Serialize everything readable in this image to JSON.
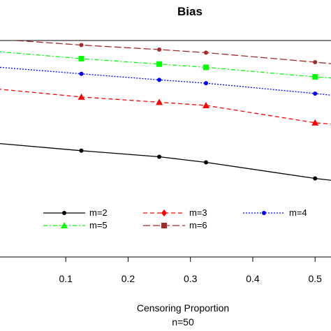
{
  "chart_data": {
    "type": "line",
    "title": "Bias",
    "xlabel": "Censoring Proportion",
    "subtitle": "n=50",
    "ylabel": "",
    "xlim": [
      -0.01,
      0.53
    ],
    "ylim": [
      0,
      1
    ],
    "x_ticks": [
      "0.1",
      "0.2",
      "0.3",
      "0.4",
      "0.5"
    ],
    "x_tick_values": [
      0.1,
      0.2,
      0.3,
      0.4,
      0.5
    ],
    "grid": false,
    "legend_position": "bottom",
    "series": [
      {
        "name": "m=2",
        "color": "#000000",
        "marker": "circle",
        "line": "solid",
        "x": [
          -0.01,
          0.125,
          0.25,
          0.325,
          0.5,
          0.53
        ],
        "y": [
          0.525,
          0.491,
          0.463,
          0.437,
          0.363,
          0.353
        ],
        "points": [
          0.125,
          0.25,
          0.325,
          0.5
        ]
      },
      {
        "name": "m=3",
        "color": "#ff0000",
        "marker": "triangle",
        "line": "dashed",
        "x": [
          -0.01,
          0.125,
          0.25,
          0.325,
          0.5,
          0.53
        ],
        "y": [
          0.776,
          0.739,
          0.715,
          0.7,
          0.62,
          0.613
        ],
        "points": [
          0.125,
          0.25,
          0.325,
          0.5
        ]
      },
      {
        "name": "m=4",
        "color": "#0000ff",
        "marker": "circle",
        "line": "dotted",
        "x": [
          -0.01,
          0.125,
          0.25,
          0.325,
          0.5,
          0.53
        ],
        "y": [
          0.877,
          0.846,
          0.818,
          0.803,
          0.755,
          0.746
        ],
        "points": [
          0.125,
          0.25,
          0.325,
          0.5
        ]
      },
      {
        "name": "m=5",
        "color": "#00ff00",
        "marker": "square",
        "line": "dotdash",
        "x": [
          -0.01,
          0.125,
          0.25,
          0.325,
          0.5,
          0.53
        ],
        "y": [
          0.949,
          0.916,
          0.891,
          0.876,
          0.832,
          0.826
        ],
        "points": [
          0.125,
          0.25,
          0.325,
          0.5
        ]
      },
      {
        "name": "m=6",
        "color": "#a52a2a",
        "marker": "circle",
        "line": "longdash",
        "x": [
          -0.01,
          0.125,
          0.25,
          0.325,
          0.5,
          0.53
        ],
        "y": [
          1.006,
          0.979,
          0.958,
          0.944,
          0.9,
          0.892
        ],
        "points": [
          0.125,
          0.25,
          0.325,
          0.5
        ]
      }
    ],
    "legend": [
      {
        "label": "m=2",
        "color": "#000000",
        "marker": "circle",
        "line": "solid"
      },
      {
        "label": "m=3",
        "color": "#ff0000",
        "marker": "diamond",
        "line": "dashed"
      },
      {
        "label": "m=4",
        "color": "#0000ff",
        "marker": "circle",
        "line": "dotted"
      },
      {
        "label": "m=5",
        "color": "#00ff00",
        "marker": "triangle",
        "line": "dotdash"
      },
      {
        "label": "m=6",
        "color": "#a52a2a",
        "marker": "square",
        "line": "longdash"
      }
    ]
  }
}
